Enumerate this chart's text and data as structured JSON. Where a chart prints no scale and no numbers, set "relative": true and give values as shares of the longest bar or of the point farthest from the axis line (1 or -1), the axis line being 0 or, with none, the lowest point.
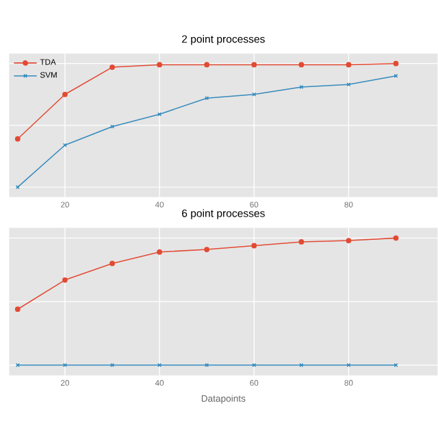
{
  "chart_data": [
    {
      "type": "line",
      "title": "2 point processes",
      "relative": true,
      "x": [
        10,
        20,
        30,
        40,
        50,
        60,
        70,
        80,
        90
      ],
      "xlim": [
        8.2,
        98.8
      ],
      "xticks": [
        20,
        40,
        60,
        80
      ],
      "grid": true,
      "legend": "top left",
      "series": [
        {
          "name": "TDA",
          "color": "#e24a33",
          "marker": "circle",
          "values": [
            0.39,
            0.75,
            0.97,
            0.99,
            0.99,
            0.99,
            0.99,
            0.99,
            1.0
          ]
        },
        {
          "name": "SVM",
          "color": "#348abd",
          "marker": "cross",
          "values": [
            0,
            0.34,
            0.49,
            0.59,
            0.72,
            0.75,
            0.81,
            0.83,
            0.9
          ]
        }
      ]
    },
    {
      "type": "line",
      "title": "6 point processes",
      "xlabel": "Datapoints",
      "relative": true,
      "x": [
        10,
        20,
        30,
        40,
        50,
        60,
        70,
        80,
        90
      ],
      "xlim": [
        8.2,
        98.8
      ],
      "xticks": [
        20,
        40,
        60,
        80
      ],
      "grid": true,
      "series": [
        {
          "color": "#e24a33",
          "marker": "circle",
          "values": [
            0.44,
            0.67,
            0.8,
            0.89,
            0.91,
            0.94,
            0.97,
            0.98,
            1.0
          ]
        },
        {
          "color": "#348abd",
          "marker": "cross",
          "values": [
            0,
            0,
            0,
            0,
            0,
            0,
            0,
            0,
            0
          ]
        }
      ]
    }
  ]
}
